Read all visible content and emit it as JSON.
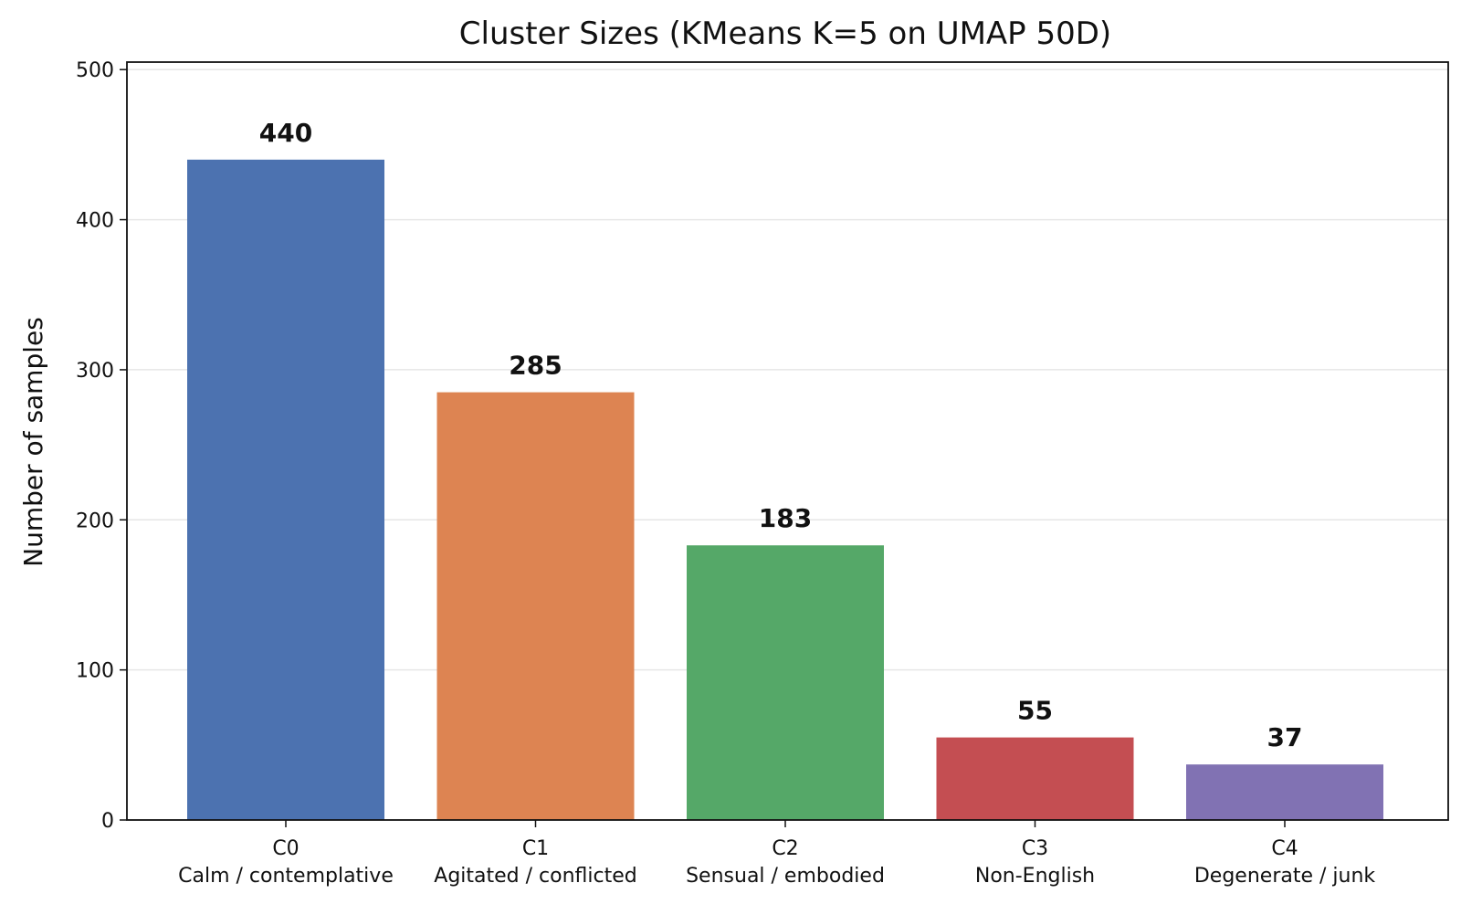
{
  "chart_data": {
    "type": "bar",
    "title": "Cluster Sizes (KMeans K=5 on UMAP 50D)",
    "xlabel": "",
    "ylabel": "Number of samples",
    "ylim": [
      0,
      505
    ],
    "yticks": [
      0,
      100,
      200,
      300,
      400,
      500
    ],
    "grid": "horizontal",
    "categories": [
      {
        "code": "C0",
        "name": "Calm / contemplative"
      },
      {
        "code": "C1",
        "name": "Agitated / conflicted"
      },
      {
        "code": "C2",
        "name": "Sensual / embodied"
      },
      {
        "code": "C3",
        "name": "Non-English"
      },
      {
        "code": "C4",
        "name": "Degenerate / junk"
      }
    ],
    "values": [
      440,
      285,
      183,
      55,
      37
    ],
    "colors": [
      "#4c72b0",
      "#dd8452",
      "#55a868",
      "#c44e52",
      "#8172b3"
    ]
  }
}
